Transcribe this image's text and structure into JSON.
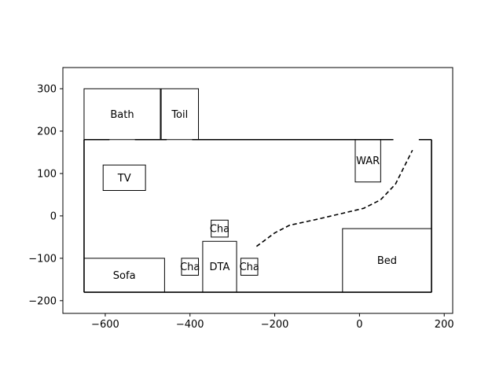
{
  "plot": {
    "xlim": [
      -700,
      220
    ],
    "ylim": [
      -230,
      350
    ],
    "xticks": [
      -600,
      -400,
      -200,
      0,
      200
    ],
    "yticks": [
      -200,
      -100,
      0,
      100,
      200,
      300
    ],
    "xtick_labels": [
      "−600",
      "−400",
      "−200",
      "0",
      "200"
    ],
    "ytick_labels": [
      "−200",
      "−100",
      "0",
      "100",
      "200",
      "300"
    ]
  },
  "room_outline": {
    "x0": -650,
    "y0": -180,
    "x1": 170,
    "y1": 180,
    "door_gaps": [
      {
        "side": "top",
        "from": -590,
        "to": -530
      },
      {
        "side": "top",
        "from": -455,
        "to": -395
      },
      {
        "side": "top",
        "from": 80,
        "to": 140
      }
    ]
  },
  "furniture": [
    {
      "label": "Bath",
      "x0": -650,
      "y0": 180,
      "x1": -470,
      "y1": 300
    },
    {
      "label": "Toil",
      "x0": -468,
      "y0": 180,
      "x1": -380,
      "y1": 300
    },
    {
      "label": "TV",
      "x0": -605,
      "y0": 60,
      "x1": -505,
      "y1": 120
    },
    {
      "label": "WAR",
      "x0": -10,
      "y0": 80,
      "x1": 50,
      "y1": 180
    },
    {
      "label": "Sofa",
      "x0": -650,
      "y0": -180,
      "x1": -460,
      "y1": -100
    },
    {
      "label": "Cha",
      "x0": -350,
      "y0": -50,
      "x1": -310,
      "y1": -10
    },
    {
      "label": "Cha",
      "x0": -420,
      "y0": -140,
      "x1": -380,
      "y1": -100
    },
    {
      "label": "DTA",
      "x0": -370,
      "y0": -180,
      "x1": -290,
      "y1": -60
    },
    {
      "label": "Cha",
      "x0": -280,
      "y0": -140,
      "x1": -240,
      "y1": -100
    },
    {
      "label": "Bed",
      "x0": -40,
      "y0": -180,
      "x1": 170,
      "y1": -30
    }
  ],
  "path": {
    "style": "dashed",
    "points": [
      [
        -243,
        -72
      ],
      [
        -200,
        -40
      ],
      [
        -165,
        -22
      ],
      [
        -100,
        -8
      ],
      [
        -40,
        6
      ],
      [
        10,
        18
      ],
      [
        50,
        38
      ],
      [
        85,
        75
      ],
      [
        105,
        115
      ],
      [
        125,
        155
      ]
    ]
  }
}
